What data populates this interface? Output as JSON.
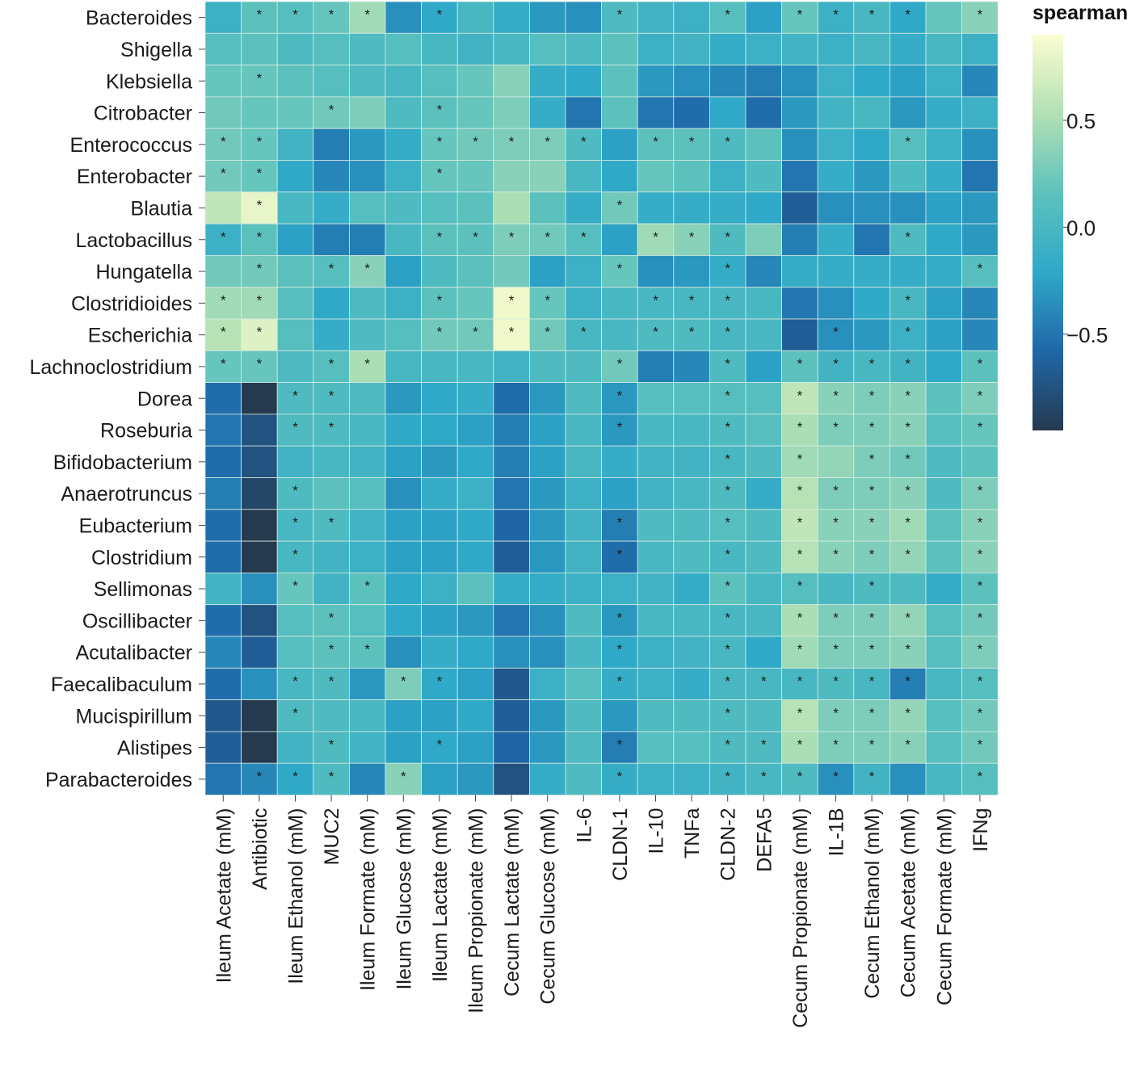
{
  "chart_data": {
    "type": "heatmap",
    "title": "",
    "xlabel": "",
    "ylabel": "",
    "rows": [
      "Bacteroides",
      "Shigella",
      "Klebsiella",
      "Citrobacter",
      "Enterococcus",
      "Enterobacter",
      "Blautia",
      "Lactobacillus",
      "Hungatella",
      "Clostridioides",
      "Escherichia",
      "Lachnoclostridium",
      "Dorea",
      "Roseburia",
      "Bifidobacterium",
      "Anaerotruncus",
      "Eubacterium",
      "Clostridium",
      "Sellimonas",
      "Oscillibacter",
      "Acutalibacter",
      "Faecalibaculum",
      "Mucispirillum",
      "Alistipes",
      "Parabacteroides"
    ],
    "columns": [
      "Ileum Acetate (mM)",
      "Antibiotic",
      "Ileum Ethanol (mM)",
      "MUC2",
      "Ileum Formate (mM)",
      "Ileum Glucose (mM)",
      "Ileum Lactate (mM)",
      "Ileum Propionate (mM)",
      "Cecum Lactate (mM)",
      "Cecum Glucose (mM)",
      "IL-6",
      "CLDN-1",
      "IL-10",
      "TNFa",
      "CLDN-2",
      "DEFA5",
      "Cecum Propionate (mM)",
      "IL-1B",
      "Cecum Ethanol (mM)",
      "Cecum Acetate (mM)",
      "Cecum Formate (mM)",
      "IFNg"
    ],
    "values": [
      [
        -0.1,
        0.15,
        0.1,
        0.2,
        0.45,
        -0.35,
        -0.2,
        0.0,
        -0.15,
        -0.3,
        -0.35,
        0.05,
        -0.05,
        -0.1,
        0.1,
        -0.25,
        0.2,
        -0.1,
        0.0,
        -0.2,
        0.2,
        0.35
      ],
      [
        0.1,
        0.15,
        0.05,
        0.1,
        0.05,
        0.1,
        0.0,
        -0.05,
        0.0,
        0.1,
        0.05,
        0.15,
        -0.1,
        -0.05,
        -0.15,
        -0.1,
        -0.05,
        -0.1,
        0.0,
        -0.15,
        0.0,
        -0.1
      ],
      [
        0.2,
        0.2,
        0.15,
        0.1,
        0.05,
        0.0,
        0.1,
        0.2,
        0.35,
        -0.15,
        -0.2,
        0.15,
        -0.3,
        -0.35,
        -0.4,
        -0.45,
        -0.35,
        -0.1,
        -0.2,
        -0.25,
        -0.1,
        -0.4
      ],
      [
        0.25,
        0.2,
        0.2,
        0.25,
        0.3,
        0.05,
        0.15,
        0.2,
        0.3,
        -0.15,
        -0.5,
        0.15,
        -0.5,
        -0.55,
        -0.2,
        -0.55,
        -0.3,
        -0.05,
        0.0,
        -0.3,
        -0.15,
        -0.1
      ],
      [
        0.25,
        0.2,
        -0.05,
        -0.45,
        -0.3,
        -0.15,
        0.2,
        0.25,
        0.3,
        0.3,
        0.05,
        -0.25,
        0.15,
        0.15,
        0.05,
        0.15,
        -0.35,
        -0.1,
        -0.2,
        0.1,
        -0.1,
        -0.35
      ],
      [
        0.25,
        0.2,
        -0.2,
        -0.4,
        -0.35,
        -0.1,
        0.2,
        0.2,
        0.35,
        0.35,
        0.0,
        -0.2,
        0.2,
        0.15,
        -0.1,
        0.05,
        -0.5,
        -0.15,
        -0.3,
        0.05,
        -0.15,
        -0.5
      ],
      [
        0.6,
        0.8,
        0.0,
        -0.15,
        0.1,
        0.05,
        0.1,
        0.15,
        0.5,
        0.15,
        -0.15,
        0.25,
        -0.15,
        -0.15,
        -0.15,
        -0.2,
        -0.65,
        -0.35,
        -0.35,
        -0.35,
        -0.25,
        -0.3
      ],
      [
        -0.1,
        0.15,
        -0.25,
        -0.45,
        -0.45,
        0.0,
        0.15,
        0.15,
        0.3,
        0.25,
        0.1,
        -0.25,
        0.45,
        0.35,
        0.05,
        0.3,
        -0.45,
        -0.15,
        -0.5,
        0.05,
        -0.2,
        -0.3
      ],
      [
        0.25,
        0.25,
        0.15,
        0.1,
        0.35,
        -0.25,
        0.05,
        0.15,
        0.25,
        -0.25,
        -0.1,
        0.2,
        -0.35,
        -0.3,
        -0.15,
        -0.4,
        -0.15,
        -0.15,
        -0.15,
        -0.15,
        -0.15,
        0.1
      ],
      [
        0.45,
        0.45,
        0.1,
        -0.2,
        0.05,
        -0.1,
        0.15,
        0.2,
        0.85,
        0.2,
        -0.1,
        0.0,
        0.0,
        0.0,
        0.0,
        0.0,
        -0.5,
        -0.35,
        -0.2,
        0.0,
        -0.25,
        -0.4
      ],
      [
        0.55,
        0.75,
        0.1,
        -0.15,
        0.05,
        0.1,
        0.25,
        0.25,
        0.85,
        0.25,
        0.0,
        0.0,
        0.05,
        0.05,
        0.0,
        0.0,
        -0.65,
        -0.35,
        -0.3,
        -0.1,
        -0.25,
        -0.4
      ],
      [
        0.2,
        0.2,
        0.05,
        0.1,
        0.5,
        0.0,
        0.0,
        0.0,
        -0.05,
        0.05,
        0.05,
        0.25,
        -0.45,
        -0.4,
        0.05,
        -0.25,
        0.15,
        -0.05,
        0.0,
        -0.05,
        -0.2,
        0.15
      ],
      [
        -0.55,
        -0.95,
        0.05,
        0.05,
        0.05,
        -0.3,
        -0.2,
        -0.15,
        -0.55,
        -0.3,
        0.05,
        -0.3,
        0.1,
        0.1,
        0.1,
        0.1,
        0.6,
        0.35,
        0.3,
        0.35,
        0.15,
        0.3
      ],
      [
        -0.5,
        -0.75,
        0.05,
        0.05,
        0.0,
        -0.2,
        -0.2,
        -0.25,
        -0.45,
        -0.25,
        0.0,
        -0.3,
        0.0,
        0.0,
        0.05,
        0.1,
        0.5,
        0.3,
        0.3,
        0.35,
        0.1,
        0.2
      ],
      [
        -0.55,
        -0.75,
        -0.05,
        0.0,
        -0.05,
        -0.25,
        -0.3,
        -0.2,
        -0.45,
        -0.25,
        0.0,
        -0.15,
        -0.05,
        -0.05,
        0.0,
        0.05,
        0.45,
        0.4,
        0.3,
        0.25,
        0.05,
        0.15
      ],
      [
        -0.45,
        -0.85,
        0.05,
        0.15,
        0.1,
        -0.35,
        -0.15,
        -0.1,
        -0.5,
        -0.3,
        -0.1,
        -0.25,
        -0.05,
        0.0,
        0.05,
        -0.15,
        0.55,
        0.3,
        0.3,
        0.35,
        0.05,
        0.3
      ],
      [
        -0.55,
        -0.95,
        0.0,
        0.05,
        -0.05,
        -0.25,
        -0.25,
        -0.2,
        -0.6,
        -0.3,
        -0.05,
        -0.45,
        0.05,
        0.05,
        0.1,
        0.05,
        0.6,
        0.35,
        0.35,
        0.45,
        0.15,
        0.35
      ],
      [
        -0.55,
        -0.95,
        0.0,
        -0.05,
        -0.1,
        -0.25,
        -0.25,
        -0.2,
        -0.65,
        -0.3,
        -0.05,
        -0.55,
        0.0,
        0.05,
        0.0,
        0.05,
        0.55,
        0.35,
        0.3,
        0.4,
        0.15,
        0.35
      ],
      [
        -0.05,
        -0.35,
        0.2,
        -0.05,
        0.15,
        -0.2,
        -0.1,
        0.15,
        -0.15,
        -0.15,
        -0.1,
        -0.1,
        -0.05,
        -0.15,
        0.15,
        0.0,
        0.1,
        0.0,
        0.05,
        0.05,
        -0.15,
        0.15
      ],
      [
        -0.55,
        -0.75,
        0.1,
        0.15,
        0.1,
        -0.2,
        -0.25,
        -0.3,
        -0.5,
        -0.35,
        0.05,
        -0.3,
        0.0,
        0.0,
        0.0,
        0.0,
        0.5,
        0.3,
        0.3,
        0.4,
        0.1,
        0.25
      ],
      [
        -0.4,
        -0.65,
        0.1,
        0.15,
        0.15,
        -0.35,
        -0.15,
        -0.2,
        -0.35,
        -0.35,
        0.0,
        -0.2,
        -0.1,
        -0.05,
        0.0,
        -0.2,
        0.45,
        0.3,
        0.3,
        0.35,
        0.1,
        0.3
      ],
      [
        -0.55,
        -0.35,
        0.0,
        0.05,
        -0.3,
        0.3,
        -0.2,
        -0.25,
        -0.7,
        -0.1,
        0.1,
        -0.15,
        -0.1,
        -0.15,
        0.0,
        0.0,
        0.0,
        0.05,
        0.0,
        -0.45,
        0.0,
        0.1
      ],
      [
        -0.7,
        -1.0,
        0.05,
        0.05,
        0.0,
        -0.25,
        -0.25,
        -0.2,
        -0.65,
        -0.3,
        0.05,
        -0.3,
        0.05,
        0.05,
        0.05,
        0.05,
        0.55,
        0.3,
        0.3,
        0.4,
        0.1,
        0.25
      ],
      [
        -0.65,
        -0.95,
        -0.05,
        0.05,
        -0.05,
        -0.25,
        -0.2,
        -0.25,
        -0.6,
        -0.3,
        0.05,
        -0.45,
        0.1,
        0.1,
        0.05,
        0.05,
        0.5,
        0.3,
        0.3,
        0.35,
        0.1,
        0.25
      ],
      [
        -0.5,
        -0.4,
        -0.2,
        0.05,
        -0.4,
        0.35,
        -0.25,
        -0.3,
        -0.75,
        -0.15,
        0.05,
        -0.15,
        -0.1,
        -0.1,
        -0.05,
        0.0,
        0.05,
        -0.35,
        -0.05,
        -0.35,
        0.0,
        0.1
      ]
    ],
    "significance": [
      [
        0,
        1,
        1,
        1,
        1,
        0,
        1,
        0,
        0,
        0,
        0,
        1,
        0,
        0,
        1,
        0,
        1,
        1,
        1,
        1,
        0,
        1
      ],
      [
        0,
        0,
        0,
        0,
        0,
        0,
        0,
        0,
        0,
        0,
        0,
        0,
        0,
        0,
        0,
        0,
        0,
        0,
        0,
        0,
        0,
        0
      ],
      [
        0,
        1,
        0,
        0,
        0,
        0,
        0,
        0,
        0,
        0,
        0,
        0,
        0,
        0,
        0,
        0,
        0,
        0,
        0,
        0,
        0,
        0
      ],
      [
        0,
        0,
        0,
        1,
        0,
        0,
        1,
        0,
        0,
        0,
        0,
        0,
        0,
        0,
        0,
        0,
        0,
        0,
        0,
        0,
        0,
        0
      ],
      [
        1,
        1,
        0,
        0,
        0,
        0,
        1,
        1,
        1,
        1,
        1,
        0,
        1,
        1,
        1,
        0,
        0,
        0,
        0,
        1,
        0,
        0
      ],
      [
        1,
        1,
        0,
        0,
        0,
        0,
        1,
        0,
        0,
        0,
        0,
        0,
        0,
        0,
        0,
        0,
        0,
        0,
        0,
        0,
        0,
        0
      ],
      [
        0,
        1,
        0,
        0,
        0,
        0,
        0,
        0,
        0,
        0,
        0,
        1,
        0,
        0,
        0,
        0,
        0,
        0,
        0,
        0,
        0,
        0
      ],
      [
        1,
        1,
        0,
        0,
        0,
        0,
        1,
        1,
        1,
        1,
        1,
        0,
        1,
        1,
        1,
        0,
        0,
        0,
        0,
        1,
        0,
        0
      ],
      [
        0,
        1,
        0,
        1,
        1,
        0,
        0,
        0,
        0,
        0,
        0,
        1,
        0,
        0,
        1,
        0,
        0,
        0,
        0,
        0,
        0,
        1
      ],
      [
        1,
        1,
        0,
        0,
        0,
        0,
        1,
        0,
        1,
        1,
        0,
        0,
        1,
        1,
        1,
        0,
        0,
        0,
        0,
        1,
        0,
        0
      ],
      [
        1,
        1,
        0,
        0,
        0,
        0,
        1,
        1,
        1,
        1,
        1,
        0,
        1,
        1,
        1,
        0,
        0,
        1,
        0,
        1,
        0,
        0
      ],
      [
        1,
        1,
        0,
        1,
        1,
        0,
        0,
        0,
        0,
        0,
        0,
        1,
        0,
        0,
        1,
        0,
        1,
        1,
        1,
        1,
        0,
        1
      ],
      [
        0,
        0,
        1,
        1,
        0,
        0,
        0,
        0,
        0,
        0,
        0,
        1,
        0,
        0,
        1,
        0,
        1,
        1,
        1,
        1,
        0,
        1
      ],
      [
        0,
        0,
        1,
        1,
        0,
        0,
        0,
        0,
        0,
        0,
        0,
        1,
        0,
        0,
        1,
        0,
        1,
        1,
        1,
        1,
        0,
        1
      ],
      [
        0,
        0,
        0,
        0,
        0,
        0,
        0,
        0,
        0,
        0,
        0,
        0,
        0,
        0,
        1,
        0,
        1,
        0,
        1,
        1,
        0,
        0
      ],
      [
        0,
        0,
        1,
        0,
        0,
        0,
        0,
        0,
        0,
        0,
        0,
        0,
        0,
        0,
        1,
        0,
        1,
        1,
        1,
        1,
        0,
        1
      ],
      [
        0,
        0,
        1,
        1,
        0,
        0,
        0,
        0,
        0,
        0,
        0,
        1,
        0,
        0,
        1,
        0,
        1,
        1,
        1,
        1,
        0,
        1
      ],
      [
        0,
        0,
        1,
        0,
        0,
        0,
        0,
        0,
        0,
        0,
        0,
        1,
        0,
        0,
        1,
        0,
        1,
        1,
        1,
        1,
        0,
        1
      ],
      [
        0,
        0,
        1,
        0,
        1,
        0,
        0,
        0,
        0,
        0,
        0,
        0,
        0,
        0,
        1,
        0,
        1,
        0,
        1,
        0,
        0,
        1
      ],
      [
        0,
        0,
        0,
        1,
        0,
        0,
        0,
        0,
        0,
        0,
        0,
        1,
        0,
        0,
        1,
        0,
        1,
        1,
        1,
        1,
        0,
        1
      ],
      [
        0,
        0,
        0,
        1,
        1,
        0,
        0,
        0,
        0,
        0,
        0,
        1,
        0,
        0,
        1,
        0,
        1,
        1,
        1,
        1,
        0,
        1
      ],
      [
        0,
        0,
        1,
        1,
        0,
        1,
        1,
        0,
        0,
        0,
        0,
        1,
        0,
        0,
        1,
        1,
        1,
        1,
        1,
        1,
        0,
        1
      ],
      [
        0,
        0,
        1,
        0,
        0,
        0,
        0,
        0,
        0,
        0,
        0,
        0,
        0,
        0,
        1,
        0,
        1,
        1,
        1,
        1,
        0,
        1
      ],
      [
        0,
        0,
        0,
        1,
        0,
        0,
        1,
        0,
        0,
        0,
        0,
        1,
        0,
        0,
        1,
        1,
        1,
        1,
        1,
        1,
        0,
        1
      ],
      [
        0,
        1,
        1,
        1,
        0,
        1,
        0,
        0,
        0,
        0,
        0,
        1,
        0,
        0,
        1,
        1,
        1,
        1,
        1,
        0,
        0,
        1
      ]
    ],
    "significance_marker": "*",
    "color_scale": {
      "name": "spearman",
      "domain": [
        -0.95,
        0.9
      ],
      "stops": [
        "#253a4f",
        "#2067a8",
        "#2fa8c8",
        "#5dc2bd",
        "#b2e0b4",
        "#fbfdd0"
      ],
      "ticks": [
        {
          "value": 0.5,
          "label": "0.5"
        },
        {
          "value": 0.0,
          "label": "0.0"
        },
        {
          "value": -0.5,
          "label": "−0.5"
        }
      ]
    },
    "legend": {
      "title": "spearman",
      "position": "top-right"
    }
  }
}
